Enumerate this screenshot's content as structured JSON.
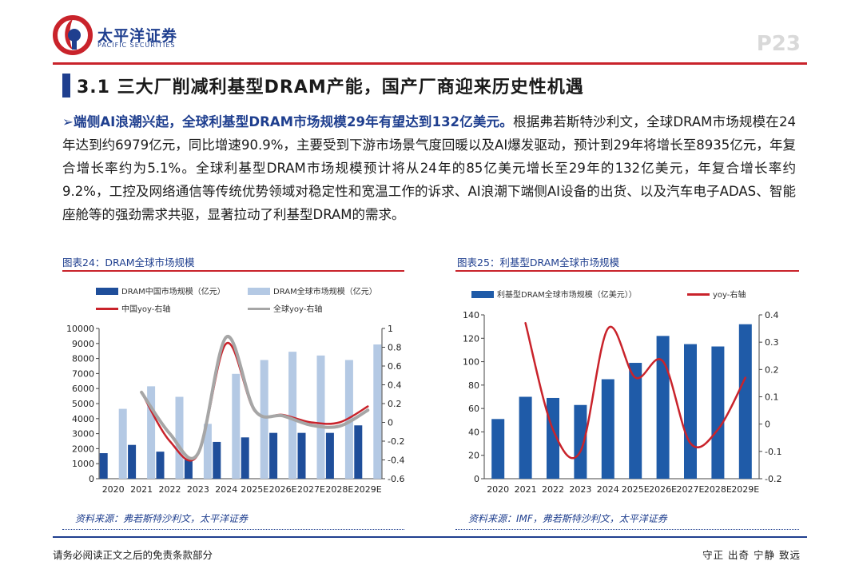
{
  "header": {
    "brand_cn": "太平洋证券",
    "brand_en": "PACIFIC SECURITIES",
    "page_number": "P23",
    "colors": {
      "brand_blue": "#1f3f8f",
      "brand_red": "#c9232b"
    }
  },
  "section": {
    "title": "3.1 三大厂削减利基型DRAM产能，国产厂商迎来历史性机遇"
  },
  "body": {
    "arrow": "➢",
    "lead": "端侧AI浪潮兴起，全球利基型DRAM市场规模29年有望达到132亿美元。",
    "text": "根据弗若斯特沙利文，全球DRAM市场规模在24年达到约6979亿元，同比增速90.9%，主要受到下游市场景气度回暖以及AI爆发驱动，预计到29年将增长至8935亿元，年复合增长率约为5.1%。全球利基型DRAM市场规模预计将从24年的85亿美元增长至29年的132亿美元，年复合增长率约9.2%，工控及网络通信等传统优势领域对稳定性和宽温工作的诉求、AI浪潮下端侧AI设备的出货、以及汽车电子ADAS、智能座舱等的强劲需求共驱，显著拉动了利基型DRAM的需求。"
  },
  "figures": {
    "fig24": {
      "caption": "图表24：DRAM全球市场规模",
      "source": "资料来源：弗若斯特沙利文，太平洋证券"
    },
    "fig25": {
      "caption": "图表25：利基型DRAM全球市场规模",
      "source": "资料来源：IMF，弗若斯特沙利文，太平洋证券"
    }
  },
  "chart_data": [
    {
      "type": "bar",
      "categories": [
        "2020",
        "2021",
        "2022",
        "2023",
        "2024",
        "2025E",
        "2026E",
        "2027E",
        "2028E",
        "2029E"
      ],
      "series": [
        {
          "name": "DRAM中国市场规模（亿元）",
          "kind": "bar",
          "axis": "left",
          "color": "#1f4e9a",
          "values": [
            1700,
            2250,
            1800,
            1300,
            2450,
            2750,
            3050,
            3050,
            3050,
            3550
          ]
        },
        {
          "name": "DRAM全球市场规模（亿元）",
          "kind": "bar",
          "axis": "left",
          "color": "#b4c9e4",
          "values": [
            4650,
            6150,
            5450,
            3650,
            6979,
            7900,
            8450,
            8200,
            7900,
            8935
          ]
        },
        {
          "name": "中国yoy-右轴",
          "kind": "line",
          "axis": "right",
          "color": "#c9232b",
          "values": [
            null,
            0.32,
            -0.2,
            -0.34,
            0.84,
            0.12,
            0.08,
            0.0,
            0.0,
            0.17
          ]
        },
        {
          "name": "全球yoy-右轴",
          "kind": "line",
          "axis": "right",
          "color": "#a6a6a6",
          "values": [
            null,
            0.32,
            -0.12,
            -0.33,
            0.909,
            0.13,
            0.07,
            -0.03,
            -0.04,
            0.13
          ]
        }
      ],
      "ylim_left": [
        0,
        10000
      ],
      "yticks_left": [
        0,
        1000,
        2000,
        3000,
        4000,
        5000,
        6000,
        7000,
        8000,
        9000,
        10000
      ],
      "ylim_right": [
        -0.6,
        1
      ],
      "yticks_right": [
        -0.6,
        -0.4,
        -0.2,
        0,
        0.2,
        0.4,
        0.6,
        0.8,
        1
      ],
      "legend_position": "top",
      "grid": false
    },
    {
      "type": "bar",
      "categories": [
        "2020",
        "2021",
        "2022",
        "2023",
        "2024",
        "2025E",
        "2026E",
        "2027E",
        "2028E",
        "2029E"
      ],
      "series": [
        {
          "name": "利基型DRAM全球市场规模（亿美元））",
          "kind": "bar",
          "axis": "left",
          "color": "#1f5ba8",
          "values": [
            51,
            70,
            69,
            63,
            85,
            99,
            122,
            115,
            113,
            132
          ]
        },
        {
          "name": "yoy-右轴",
          "kind": "line",
          "axis": "right",
          "color": "#c9232b",
          "values": [
            null,
            0.37,
            -0.02,
            -0.1,
            0.35,
            0.17,
            0.23,
            -0.07,
            -0.02,
            0.17
          ]
        }
      ],
      "ylim_left": [
        0,
        140
      ],
      "yticks_left": [
        0,
        20,
        40,
        60,
        80,
        100,
        120,
        140
      ],
      "ylim_right": [
        -0.2,
        0.4
      ],
      "yticks_right": [
        -0.2,
        -0.1,
        0,
        0.1,
        0.2,
        0.3,
        0.4
      ],
      "legend_position": "top",
      "grid": false
    }
  ],
  "footer": {
    "left": "请务必阅读正文之后的免责条款部分",
    "right": "守正 出奇 宁静 致远"
  }
}
